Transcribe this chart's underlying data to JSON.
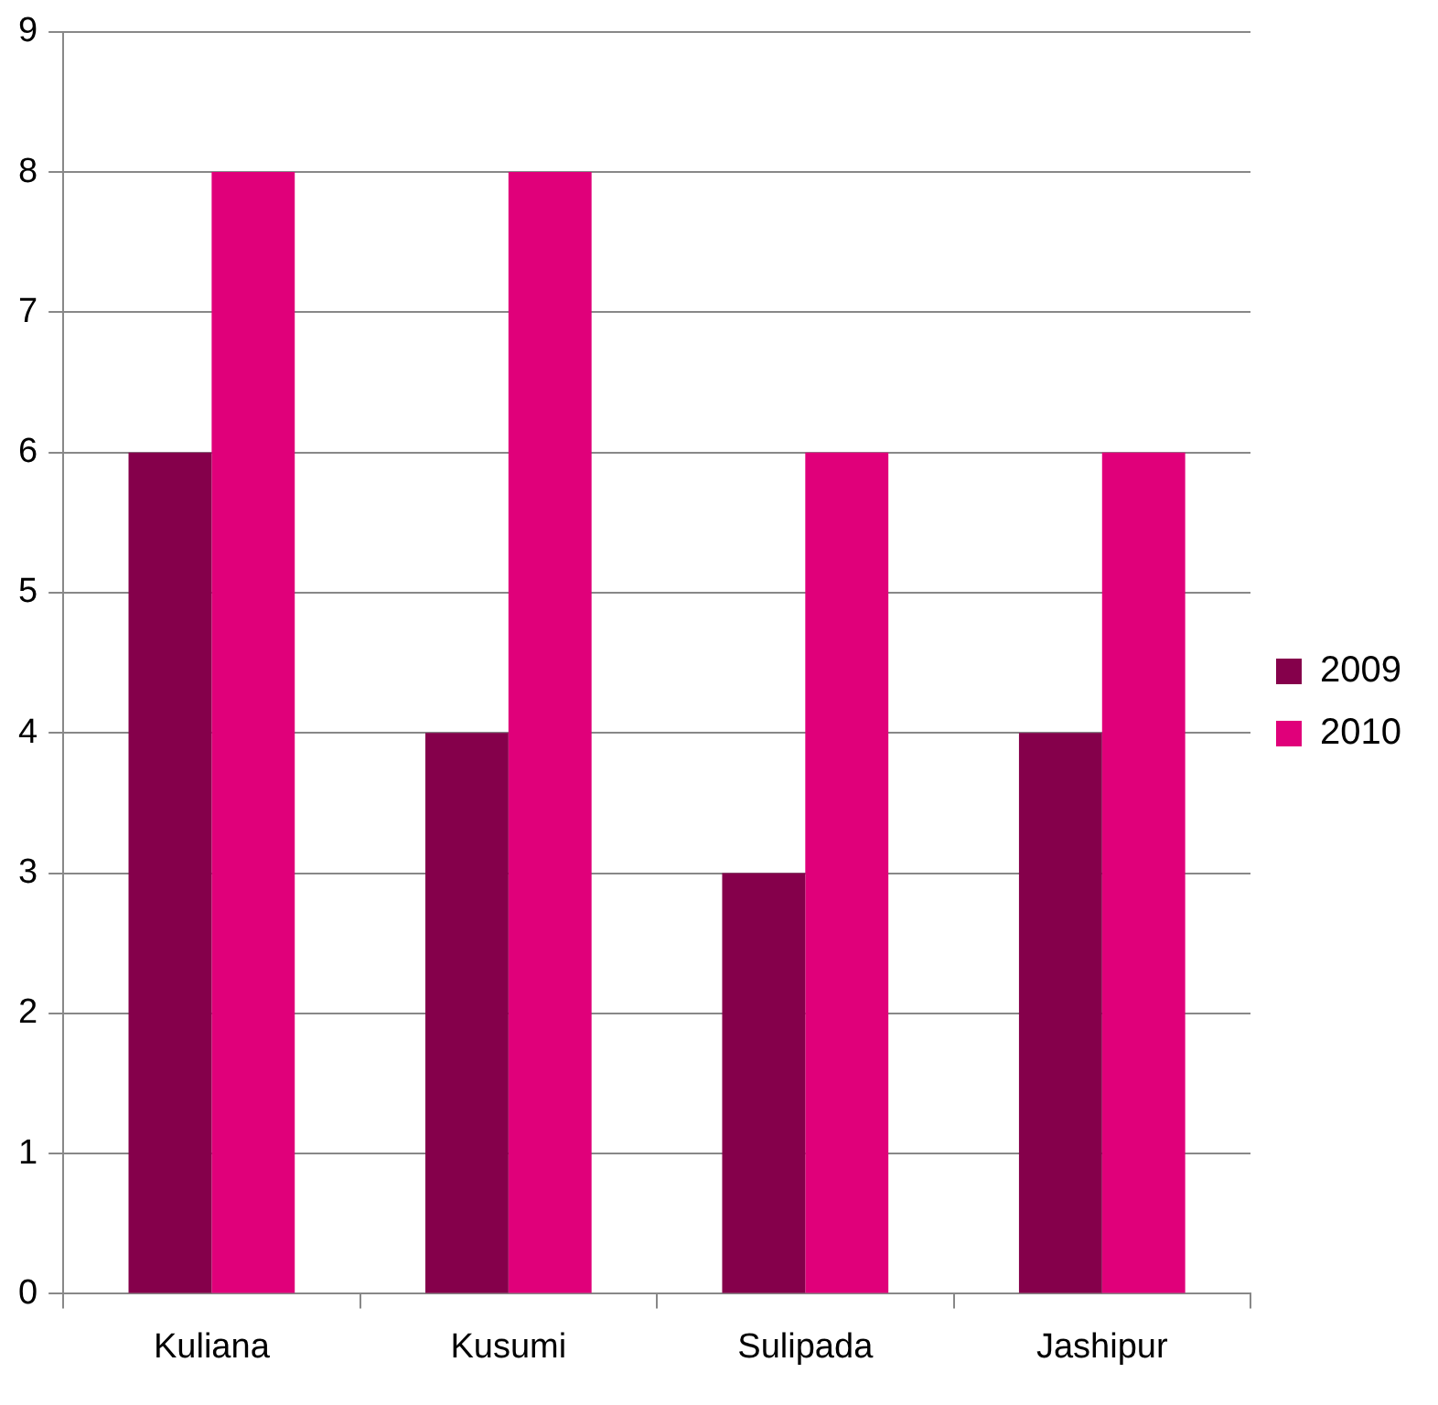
{
  "chart_data": {
    "type": "bar",
    "categories": [
      "Kuliana",
      "Kusumi",
      "Sulipada",
      "Jashipur"
    ],
    "series": [
      {
        "name": "2009",
        "color": "#85004b",
        "values": [
          6,
          4,
          3,
          4
        ]
      },
      {
        "name": "2010",
        "color": "#e0007a",
        "values": [
          8,
          8,
          6,
          6
        ]
      }
    ],
    "ylim": [
      0,
      9
    ],
    "yticks": [
      0,
      1,
      2,
      3,
      4,
      5,
      6,
      7,
      8,
      9
    ],
    "grid": "y",
    "legend": "right"
  }
}
